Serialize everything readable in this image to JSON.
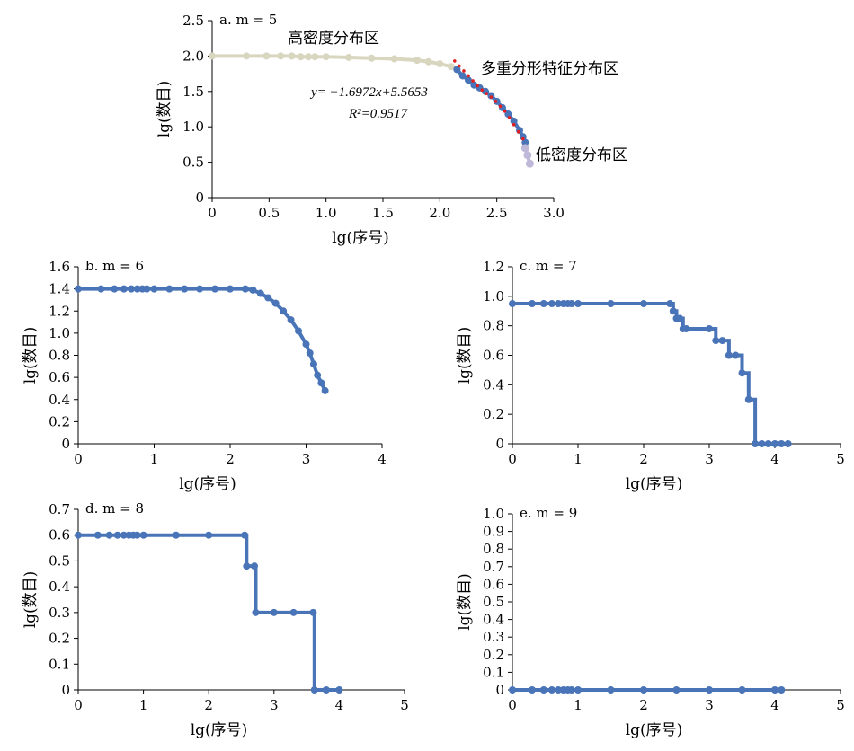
{
  "chart_data": [
    {
      "type": "line",
      "title": "a. m = 5",
      "xlabel": "lg(序号)",
      "ylabel": "lg(数目)",
      "xlim": [
        0,
        3.0
      ],
      "ylim": [
        0,
        2.5
      ],
      "xticks": [
        "0",
        "0.5",
        "1.0",
        "1.5",
        "2.0",
        "2.5",
        "3.0"
      ],
      "yticks": [
        "0",
        "0.5",
        "1.0",
        "1.5",
        "2.0",
        "2.5"
      ],
      "grid": false,
      "series": [
        {
          "name": "高密度分布区",
          "color": "#d9d6c0",
          "x": [
            0,
            0.301,
            0.477,
            0.602,
            0.699,
            0.778,
            0.845,
            0.903,
            1.0,
            1.2,
            1.4,
            1.6,
            1.8,
            1.9,
            2.0,
            2.1,
            2.15
          ],
          "y": [
            2.0,
            2.0,
            2.0,
            2.0,
            2.0,
            1.99,
            1.99,
            1.99,
            1.99,
            1.98,
            1.97,
            1.96,
            1.94,
            1.92,
            1.89,
            1.85,
            1.81
          ]
        },
        {
          "name": "多重分形特征分布区",
          "color": "#4a74b8",
          "x": [
            2.15,
            2.2,
            2.25,
            2.3,
            2.35,
            2.4,
            2.45,
            2.5,
            2.55,
            2.6,
            2.65,
            2.7,
            2.73,
            2.75
          ],
          "y": [
            1.81,
            1.72,
            1.66,
            1.59,
            1.55,
            1.5,
            1.44,
            1.36,
            1.27,
            1.18,
            1.08,
            0.95,
            0.86,
            0.78
          ]
        },
        {
          "name": "低密度分布区",
          "color": "#c0b8d8",
          "x": [
            2.75,
            2.77,
            2.79
          ],
          "y": [
            0.7,
            0.6,
            0.48
          ]
        }
      ],
      "fit_points": {
        "color": "#e02020",
        "x": [
          2.13,
          2.17,
          2.21,
          2.25,
          2.29,
          2.33,
          2.37,
          2.41,
          2.45,
          2.49,
          2.53,
          2.57,
          2.61,
          2.65,
          2.69,
          2.73
        ],
        "y": [
          1.93,
          1.86,
          1.79,
          1.72,
          1.65,
          1.58,
          1.52,
          1.47,
          1.42,
          1.36,
          1.29,
          1.22,
          1.13,
          1.03,
          0.93,
          0.83
        ]
      },
      "annotations": {
        "high": "高密度分布区",
        "multi": "多重分形特征分布区",
        "low": "低密度分布区",
        "equation": "y= −1.6972x+5.5653",
        "r2": "R²=0.9517"
      }
    },
    {
      "type": "line",
      "title": "b. m = 6",
      "xlabel": "lg(序号)",
      "ylabel": "lg(数目)",
      "xlim": [
        0,
        4
      ],
      "ylim": [
        0,
        1.6
      ],
      "xticks": [
        "0",
        "1",
        "2",
        "3",
        "4"
      ],
      "yticks": [
        "0",
        "0.2",
        "0.4",
        "0.6",
        "0.8",
        "1.0",
        "1.2",
        "1.4",
        "1.6"
      ],
      "grid": false,
      "series": [
        {
          "color": "#4a74b8",
          "x": [
            0,
            0.301,
            0.477,
            0.602,
            0.699,
            0.778,
            0.845,
            0.903,
            1.0,
            1.2,
            1.4,
            1.6,
            1.8,
            2.0,
            2.2,
            2.3,
            2.4,
            2.5,
            2.6,
            2.7,
            2.8,
            2.9,
            3.0,
            3.05,
            3.1,
            3.15,
            3.2,
            3.25
          ],
          "y": [
            1.4,
            1.4,
            1.4,
            1.4,
            1.4,
            1.4,
            1.4,
            1.4,
            1.4,
            1.4,
            1.4,
            1.4,
            1.4,
            1.4,
            1.4,
            1.39,
            1.36,
            1.32,
            1.27,
            1.2,
            1.12,
            1.02,
            0.9,
            0.82,
            0.72,
            0.62,
            0.55,
            0.48
          ]
        }
      ]
    },
    {
      "type": "line",
      "title": "c. m = 7",
      "xlabel": "lg(序号)",
      "ylabel": "lg(数目)",
      "xlim": [
        0,
        5
      ],
      "ylim": [
        0,
        1.2
      ],
      "xticks": [
        "0",
        "1",
        "2",
        "3",
        "4",
        "5"
      ],
      "yticks": [
        "0",
        "0.2",
        "0.4",
        "0.6",
        "0.8",
        "1.0",
        "1.2"
      ],
      "grid": false,
      "series": [
        {
          "color": "#4a74b8",
          "x": [
            0,
            0.301,
            0.477,
            0.602,
            0.699,
            0.778,
            0.845,
            0.903,
            1.0,
            1.5,
            2.0,
            2.4,
            2.45,
            2.5,
            2.55,
            2.6,
            2.65,
            3.0,
            3.1,
            3.2,
            3.3,
            3.4,
            3.5,
            3.6,
            3.7,
            3.8,
            3.9,
            4.0,
            4.1,
            4.2
          ],
          "y": [
            0.95,
            0.95,
            0.95,
            0.95,
            0.95,
            0.95,
            0.95,
            0.95,
            0.95,
            0.95,
            0.95,
            0.95,
            0.9,
            0.85,
            0.85,
            0.78,
            0.78,
            0.78,
            0.7,
            0.7,
            0.6,
            0.6,
            0.48,
            0.3,
            0,
            0,
            0,
            0,
            0,
            0
          ]
        }
      ]
    },
    {
      "type": "line",
      "title": "d. m = 8",
      "xlabel": "lg(序号)",
      "ylabel": "lg(数目)",
      "xlim": [
        0,
        5
      ],
      "ylim": [
        0,
        0.7
      ],
      "xticks": [
        "0",
        "1",
        "2",
        "3",
        "4",
        "5"
      ],
      "yticks": [
        "0",
        "0.1",
        "0.2",
        "0.3",
        "0.4",
        "0.5",
        "0.6",
        "0.7"
      ],
      "grid": false,
      "series": [
        {
          "color": "#4a74b8",
          "x": [
            0,
            0.301,
            0.477,
            0.602,
            0.699,
            0.778,
            0.845,
            0.903,
            1.0,
            1.5,
            2.0,
            2.55,
            2.58,
            2.7,
            2.72,
            3.0,
            3.3,
            3.6,
            3.62,
            3.8,
            4.0
          ],
          "y": [
            0.6,
            0.6,
            0.6,
            0.6,
            0.6,
            0.6,
            0.6,
            0.6,
            0.6,
            0.6,
            0.6,
            0.6,
            0.48,
            0.48,
            0.3,
            0.3,
            0.3,
            0.3,
            0,
            0,
            0
          ]
        }
      ]
    },
    {
      "type": "line",
      "title": "e. m = 9",
      "xlabel": "lg(序号)",
      "ylabel": "lg(数目)",
      "xlim": [
        0,
        5
      ],
      "ylim": [
        0,
        1.0
      ],
      "xticks": [
        "0",
        "1",
        "2",
        "3",
        "4",
        "5"
      ],
      "yticks": [
        "0",
        "0.1",
        "0.2",
        "0.3",
        "0.4",
        "0.5",
        "0.6",
        "0.7",
        "0.8",
        "0.9",
        "1.0"
      ],
      "grid": false,
      "series": [
        {
          "color": "#4a74b8",
          "x": [
            0,
            0.301,
            0.477,
            0.602,
            0.699,
            0.778,
            0.845,
            0.903,
            1.0,
            1.5,
            2.0,
            2.5,
            3.0,
            3.5,
            4.0,
            4.1
          ],
          "y": [
            0,
            0,
            0,
            0,
            0,
            0,
            0,
            0,
            0,
            0,
            0,
            0,
            0,
            0,
            0,
            0
          ]
        }
      ]
    }
  ]
}
